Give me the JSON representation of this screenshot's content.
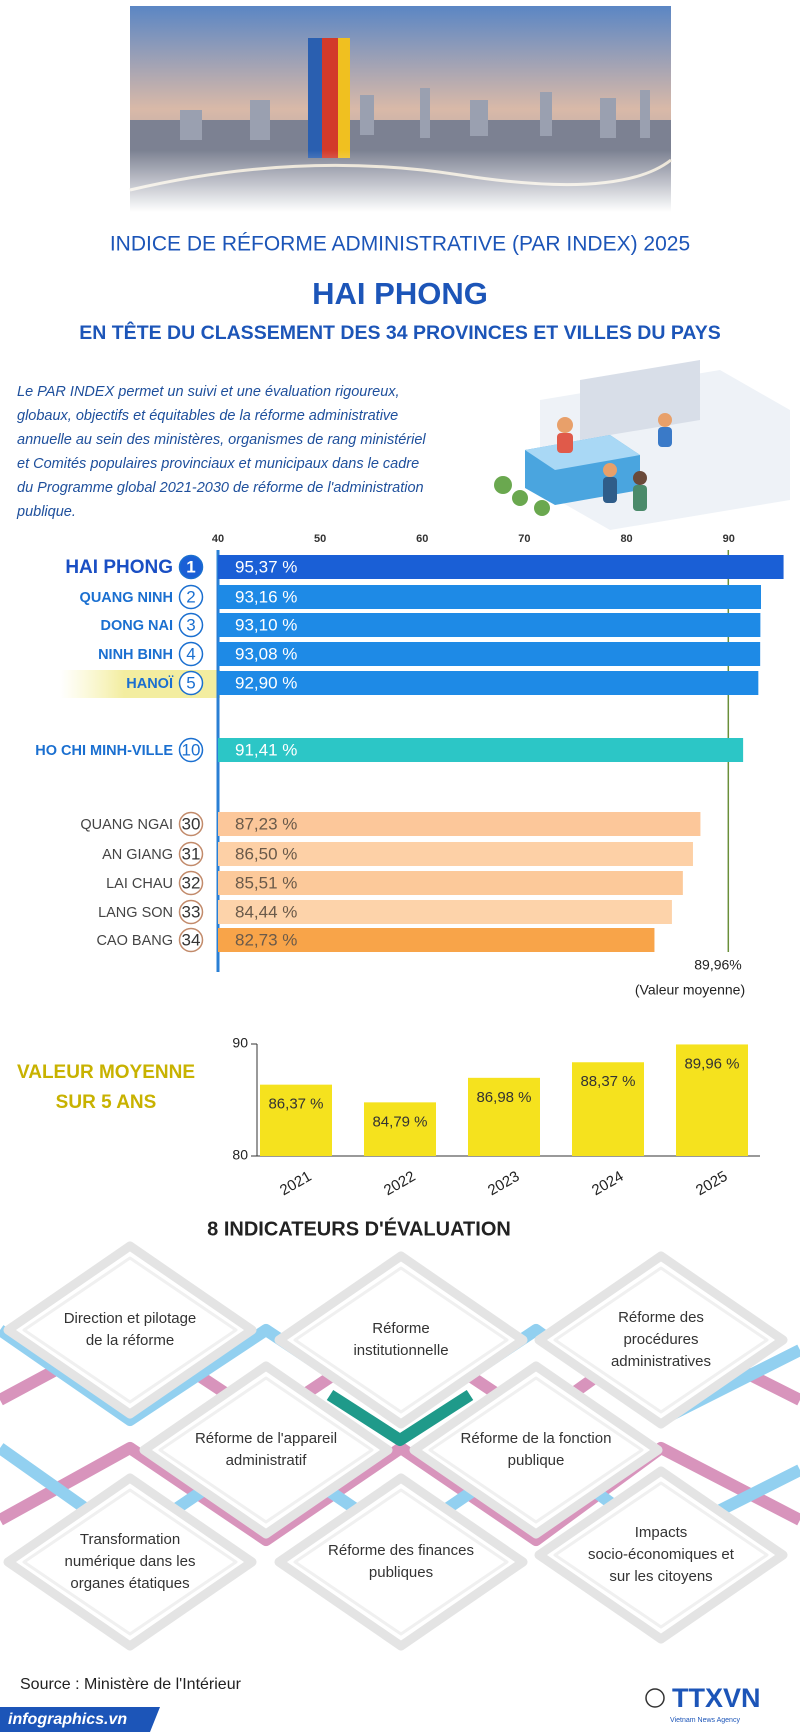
{
  "header": {
    "title": "INDICE DE RÉFORME ADMINISTRATIVE (PAR INDEX) 2025",
    "headline": "HAI PHONG",
    "subtitle": "EN TÊTE DU CLASSEMENT DES 34 PROVINCES ET VILLES DU PAYS"
  },
  "intro": [
    "Le PAR INDEX permet un suivi et une évaluation rigoureux,",
    "globaux, objectifs et équitables de la réforme administrative",
    "annuelle au sein des ministères, organismes de rang ministériel",
    "et Comités populaires provinciaux et municipaux dans le cadre",
    "du Programme global 2021-2030 de réforme de l'administration",
    "publique."
  ],
  "chart_data": [
    {
      "type": "bar",
      "orientation": "horizontal",
      "categories": [
        "HAI PHONG",
        "QUANG NINH",
        "DONG NAI",
        "NINH BINH",
        "HANOÏ",
        "HO CHI MINH-VILLE",
        "QUANG NGAI",
        "AN GIANG",
        "LAI CHAU",
        "LANG SON",
        "CAO BANG"
      ],
      "ranks": [
        1,
        2,
        3,
        4,
        5,
        10,
        30,
        31,
        32,
        33,
        34
      ],
      "values": [
        95.37,
        93.16,
        93.1,
        93.08,
        92.9,
        91.41,
        87.23,
        86.5,
        85.51,
        84.44,
        82.73
      ],
      "value_labels": [
        "95,37 %",
        "93,16 %",
        "93,10 %",
        "93,08 %",
        "92,90 %",
        "91,41 %",
        "87,23 %",
        "86,50 %",
        "85,51 %",
        "84,44 %",
        "82,73 %"
      ],
      "colors": [
        "#1a5fd6",
        "#1e8ae6",
        "#1e8ae6",
        "#1e8ae6",
        "#1e8ae6",
        "#2cc6c6",
        "#fcc79a",
        "#fdd0a6",
        "#fcc99a",
        "#fdd3aa",
        "#f8a449"
      ],
      "xlim": [
        40,
        96
      ],
      "xticks": [
        40,
        50,
        60,
        70,
        80,
        90
      ],
      "reference": {
        "value": 89.96,
        "label": "89,96%",
        "note": "(Valeur moyenne)",
        "color": "#6a8f3a"
      }
    },
    {
      "type": "bar",
      "title": "VALEUR MOYENNE SUR 5 ANS",
      "title_lines": [
        "VALEUR MOYENNE",
        "SUR 5 ANS"
      ],
      "categories": [
        "2021",
        "2022",
        "2023",
        "2024",
        "2025"
      ],
      "values": [
        86.37,
        84.79,
        86.98,
        88.37,
        89.96
      ],
      "value_labels": [
        "86,37 %",
        "84,79 %",
        "86,98 %",
        "88,37 %",
        "89,96 %"
      ],
      "color": "#f5e21e",
      "ylim": [
        80,
        90
      ],
      "yticks": [
        80,
        90
      ]
    }
  ],
  "indicators": {
    "title": "8 INDICATEURS D'ÉVALUATION",
    "items": [
      [
        "Direction et pilotage",
        "de la réforme"
      ],
      [
        "Réforme",
        "institutionnelle"
      ],
      [
        "Réforme des",
        "procédures",
        "administratives"
      ],
      [
        "Réforme de l'appareil",
        "administratif"
      ],
      [
        "Réforme de la fonction",
        "publique"
      ],
      [
        "Transformation",
        "numérique dans les",
        "organes étatiques"
      ],
      [
        "Réforme des finances",
        "publiques"
      ],
      [
        "Impacts",
        "socio-économiques et",
        "sur les citoyens"
      ]
    ]
  },
  "source": "Source : Ministère de l'Intérieur",
  "footer": {
    "site": "infographics.vn",
    "agency": "TTXVN",
    "agency_note": "Vietnam News Agency"
  }
}
